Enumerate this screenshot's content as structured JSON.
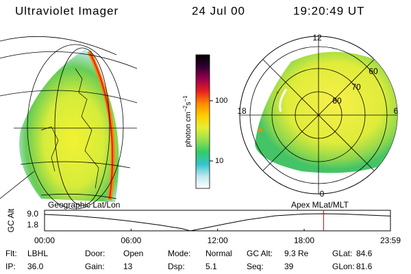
{
  "header": {
    "title": "Ultraviolet Imager",
    "date": "24 Jul 00",
    "time": "19:20:49 UT"
  },
  "colorbar": {
    "label_parts": [
      "photon cm",
      "−2",
      "s",
      "−1"
    ],
    "scale": "log",
    "lim": [
      3.5,
      580
    ],
    "ticks": [
      10,
      100
    ],
    "colors": [
      "#ffffff",
      "#bfe8ee",
      "#33c4cc",
      "#33cc66",
      "#99e04d",
      "#e6f033",
      "#ffcc00",
      "#ff8800",
      "#e62020",
      "#99004d",
      "#330033",
      "#000000"
    ]
  },
  "left_image": {
    "caption": "Geographic Lat/Lon"
  },
  "right_image": {
    "caption": "Apex MLat/MLT",
    "mlt_labels": [
      "12",
      "18",
      "6",
      "0"
    ],
    "mlat_labels": [
      "60",
      "70",
      "80"
    ]
  },
  "altitude_plot": {
    "type": "line",
    "ylabel": "GC Alt",
    "color": "#000000",
    "x": [
      0,
      2,
      4,
      6,
      8,
      9.5,
      10.1,
      11,
      12.5,
      14,
      16,
      18,
      19.35,
      21,
      23.983
    ],
    "values": [
      9.0,
      8.4,
      7.4,
      6.0,
      4.3,
      2.8,
      1.8,
      2.9,
      4.8,
      6.6,
      8.4,
      9.2,
      9.3,
      9.1,
      8.3
    ],
    "xlim": [
      0,
      23.983
    ],
    "xticks": [
      {
        "value": 0,
        "label": "00:00"
      },
      {
        "value": 6,
        "label": "06:00"
      },
      {
        "value": 12,
        "label": "12:00"
      },
      {
        "value": 18,
        "label": "18:00"
      },
      {
        "value": 23.983,
        "label": "23:59"
      }
    ],
    "ylim": [
      1.8,
      10.8
    ],
    "yticks": [
      1.8,
      {
        "value": 9,
        "label": "9.0"
      }
    ],
    "marker_x": 19.347,
    "marker_color": "#cc0000"
  },
  "info": [
    [
      [
        "Flt:",
        "LBHL"
      ],
      [
        "Door:",
        "Open"
      ],
      [
        "Mode:",
        "Normal"
      ],
      [
        "GC Alt:",
        "9.3 Re"
      ],
      [
        "GLat:",
        "84.6"
      ]
    ],
    [
      [
        "IP:",
        "36.0"
      ],
      [
        "Gain:",
        "13"
      ],
      [
        "Dsp:",
        "5.1"
      ],
      [
        "Seq:",
        "39"
      ],
      [
        "GLon:",
        "81.6"
      ]
    ]
  ]
}
